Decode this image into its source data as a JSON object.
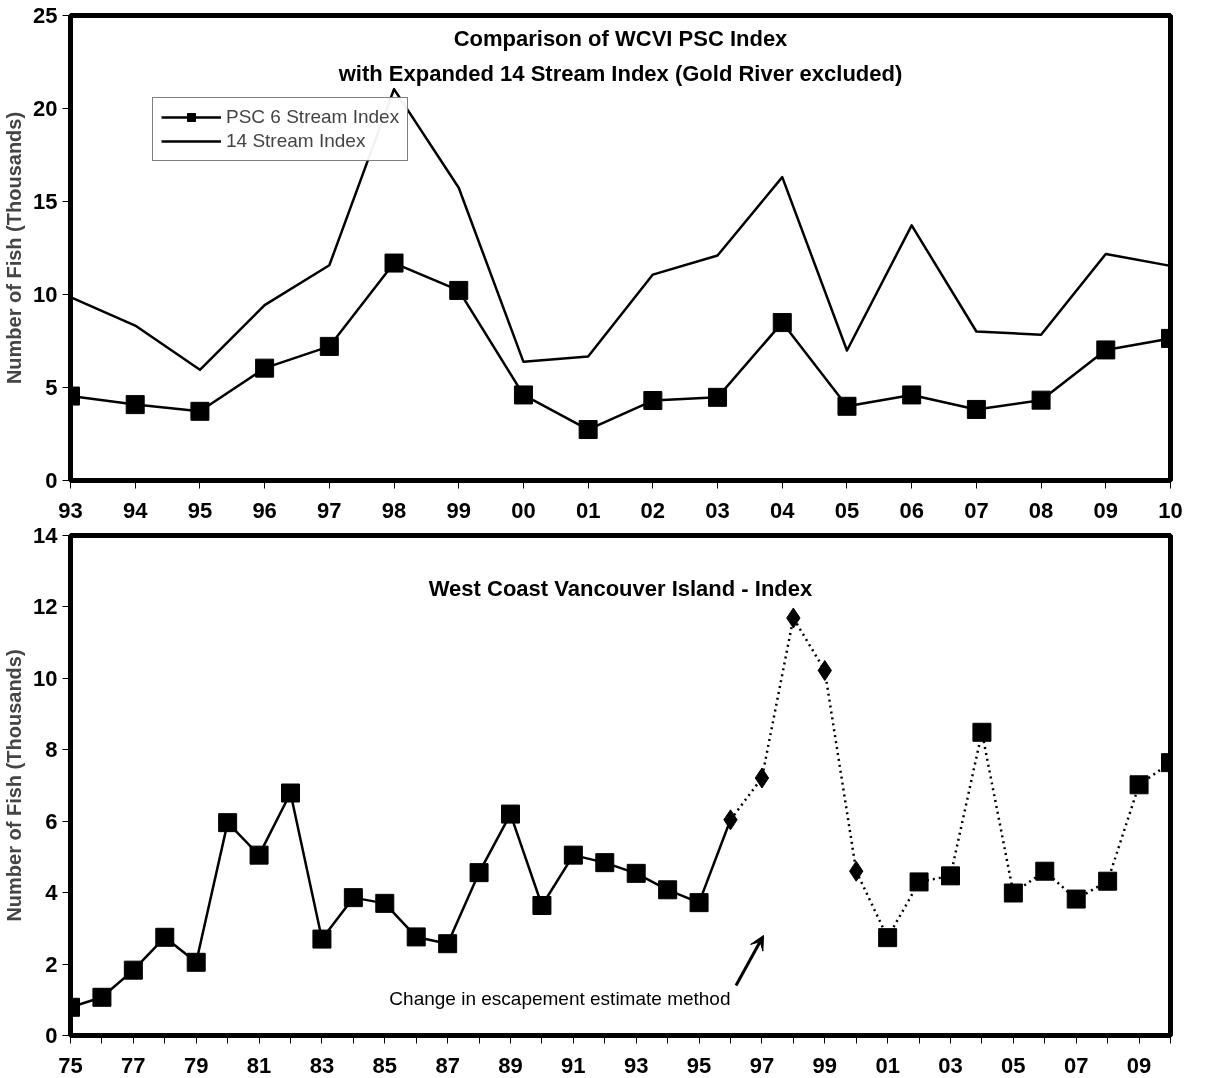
{
  "chart_data": [
    {
      "type": "line",
      "title": "Comparison of WCVI PSC Index\nwith Expanded 14 Stream Index (Gold River excluded)",
      "ylabel": "Number of Fish (Thousands)",
      "x": [
        1993,
        1994,
        1995,
        1996,
        1997,
        1998,
        1999,
        2000,
        2001,
        2002,
        2003,
        2004,
        2005,
        2006,
        2007,
        2008,
        2009,
        2010
      ],
      "xlim": [
        1993,
        2010
      ],
      "xticks": [
        {
          "value": 1993,
          "label": "93"
        },
        {
          "value": 1994,
          "label": "94"
        },
        {
          "value": 1995,
          "label": "95"
        },
        {
          "value": 1996,
          "label": "96"
        },
        {
          "value": 1997,
          "label": "97"
        },
        {
          "value": 1998,
          "label": "98"
        },
        {
          "value": 1999,
          "label": "99"
        },
        {
          "value": 2000,
          "label": "00"
        },
        {
          "value": 2001,
          "label": "01"
        },
        {
          "value": 2002,
          "label": "02"
        },
        {
          "value": 2003,
          "label": "03"
        },
        {
          "value": 2004,
          "label": "04"
        },
        {
          "value": 2005,
          "label": "05"
        },
        {
          "value": 2006,
          "label": "06"
        },
        {
          "value": 2007,
          "label": "07"
        },
        {
          "value": 2008,
          "label": "08"
        },
        {
          "value": 2009,
          "label": "09"
        },
        {
          "value": 2010,
          "label": "10"
        }
      ],
      "ylim": [
        0,
        25
      ],
      "yticks": [
        0,
        5,
        10,
        15,
        20,
        25
      ],
      "grid": false,
      "legend": "top left",
      "series": [
        {
          "name": "PSC 6 Stream Index",
          "color": "#000000",
          "marker": "square",
          "line_style": "solid",
          "values": [
            4.54,
            4.08,
            3.72,
            6.04,
            7.21,
            11.69,
            10.22,
            4.6,
            2.74,
            4.3,
            4.47,
            8.49,
            3.99,
            4.6,
            3.82,
            4.32,
            7.02,
            7.64
          ]
        },
        {
          "name": "14 Stream Index",
          "color": "#000000",
          "marker": "none",
          "line_style": "solid",
          "values": [
            9.86,
            8.33,
            5.95,
            9.43,
            11.57,
            21.04,
            15.74,
            6.38,
            6.67,
            11.07,
            12.1,
            16.31,
            6.99,
            13.72,
            8.01,
            7.84,
            12.18,
            11.54
          ]
        }
      ]
    },
    {
      "type": "line",
      "title": "West Coast Vancouver Island - Index",
      "ylabel": "Number of Fish (Thousands)",
      "xlim": [
        1975,
        2010
      ],
      "xticks": [
        {
          "value": 1975,
          "label": "75"
        },
        {
          "value": 1976,
          "label": null
        },
        {
          "value": 1977,
          "label": "77"
        },
        {
          "value": 1978,
          "label": null
        },
        {
          "value": 1979,
          "label": "79"
        },
        {
          "value": 1980,
          "label": null
        },
        {
          "value": 1981,
          "label": "81"
        },
        {
          "value": 1982,
          "label": null
        },
        {
          "value": 1983,
          "label": "83"
        },
        {
          "value": 1984,
          "label": null
        },
        {
          "value": 1985,
          "label": "85"
        },
        {
          "value": 1986,
          "label": null
        },
        {
          "value": 1987,
          "label": "87"
        },
        {
          "value": 1988,
          "label": null
        },
        {
          "value": 1989,
          "label": "89"
        },
        {
          "value": 1990,
          "label": null
        },
        {
          "value": 1991,
          "label": "91"
        },
        {
          "value": 1992,
          "label": null
        },
        {
          "value": 1993,
          "label": "93"
        },
        {
          "value": 1994,
          "label": null
        },
        {
          "value": 1995,
          "label": "95"
        },
        {
          "value": 1996,
          "label": null
        },
        {
          "value": 1997,
          "label": "97"
        },
        {
          "value": 1998,
          "label": null
        },
        {
          "value": 1999,
          "label": "99"
        },
        {
          "value": 2000,
          "label": null
        },
        {
          "value": 2001,
          "label": "01"
        },
        {
          "value": 2002,
          "label": null
        },
        {
          "value": 2003,
          "label": "03"
        },
        {
          "value": 2004,
          "label": null
        },
        {
          "value": 2005,
          "label": "05"
        },
        {
          "value": 2006,
          "label": null
        },
        {
          "value": 2007,
          "label": "07"
        },
        {
          "value": 2008,
          "label": null
        },
        {
          "value": 2009,
          "label": "09"
        },
        {
          "value": 2010,
          "label": null
        }
      ],
      "ylim": [
        0,
        14
      ],
      "yticks": [
        0,
        2,
        4,
        6,
        8,
        10,
        12,
        14
      ],
      "grid": false,
      "legend": false,
      "annotations": [
        "Change in escapement estimate method"
      ],
      "series": [
        {
          "color": "#000000",
          "marker": "square",
          "line_style": "solid",
          "x": [
            1975,
            1976,
            1977,
            1978,
            1979,
            1980,
            1981,
            1982,
            1983,
            1984,
            1985,
            1986,
            1987,
            1988,
            1989,
            1990,
            1991,
            1992,
            1993,
            1994,
            1995
          ],
          "values": [
            0.79,
            1.07,
            1.83,
            2.75,
            2.05,
            5.96,
            5.05,
            6.79,
            2.7,
            3.86,
            3.7,
            2.76,
            2.57,
            4.56,
            6.2,
            3.64,
            5.05,
            4.84,
            4.54,
            4.08,
            3.72
          ]
        },
        {
          "color": "#000000",
          "line_style": "solid",
          "x": [
            1995,
            1996
          ],
          "values": [
            3.72,
            6.04
          ]
        },
        {
          "color": "#000000",
          "marker": "diamond",
          "line_style": "dotted",
          "x": [
            1996,
            1997,
            1998,
            1999,
            2000
          ],
          "values": [
            6.04,
            7.21,
            11.69,
            10.22,
            4.6
          ]
        },
        {
          "color": "#000000",
          "line_style": "dotted",
          "x": [
            2000,
            2001
          ],
          "values": [
            4.6,
            2.74
          ]
        },
        {
          "color": "#000000",
          "marker": "square",
          "line_style": "dotted",
          "x": [
            2001,
            2002,
            2003,
            2004,
            2005,
            2006,
            2007,
            2008,
            2009,
            2010
          ],
          "values": [
            2.74,
            4.3,
            4.47,
            8.49,
            3.99,
            4.6,
            3.82,
            4.32,
            7.02,
            7.64
          ]
        }
      ]
    }
  ]
}
